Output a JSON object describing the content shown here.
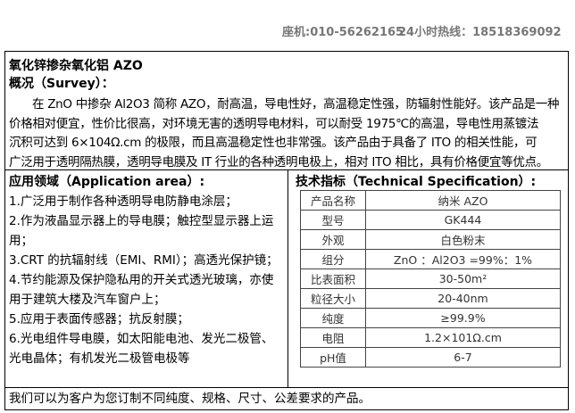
{
  "header": {
    "landline": "座机:010-56262165",
    "hotline": "24小时热线：18518369092"
  },
  "title": "氧化锌掺杂氧化铝 AZO",
  "survey": {
    "heading": "概况（Survey）：",
    "lines": [
      "在 ZnO 中掺杂 Al2O3 简称 AZO，耐高温，导电性好，高温稳定性强，防辐射性能好。该产品是一种",
      "价格相对便宜，性价比很高，对环境无害的透明导电材料，可以耐受 1975℃的高温，导电性用蒸镀法",
      "沉积可达到 6×104Ω.cm 的极限，而且高温稳定性也非常强。该产品由于具备了 ITO 的相关性能，可",
      "广泛用于透明隔热膜，透明导电膜及 IT 行业的各种透明电极上，相对 ITO 相比，具有价格便宜等优点。"
    ]
  },
  "application": {
    "heading": "应用领域（Application area）:",
    "items": [
      "1.广泛用于制作各种透明导电防静电涂层；",
      "2.作为液晶显示器上的导电膜；触控型显示器上运用；",
      "3.CRT 的抗辐射线（EMI、RMI）；高透光保护镜；",
      "4.节约能源及保护隐私用的开关式透光玻璃，亦使用于建筑大楼及汽车窗户上；",
      "5.应用于表面传感器；抗反射膜；",
      "6.光电组件导电膜，如太阳能电池、发光二极管、光电晶体；有机发光二极管电极等"
    ]
  },
  "specification": {
    "heading": "技术指标（Technical Specification）:",
    "rows": [
      [
        "产品名称",
        "纳米 AZO"
      ],
      [
        "型号",
        "GK444"
      ],
      [
        "外观",
        "白色粉末"
      ],
      [
        "组分",
        "ZnO ：Al2O3 =99%：1%"
      ],
      [
        "比表面积",
        "30-50m²"
      ],
      [
        "粒径大小",
        "20-40nm"
      ],
      [
        "纯度",
        "≥99.9%"
      ],
      [
        "电阻",
        "1.2×101Ω.cm"
      ],
      [
        "pH值",
        "6-7"
      ]
    ]
  },
  "footer": "我们可以为客户为您订制不同纯度、规格、尺寸、公差要求的产品。"
}
